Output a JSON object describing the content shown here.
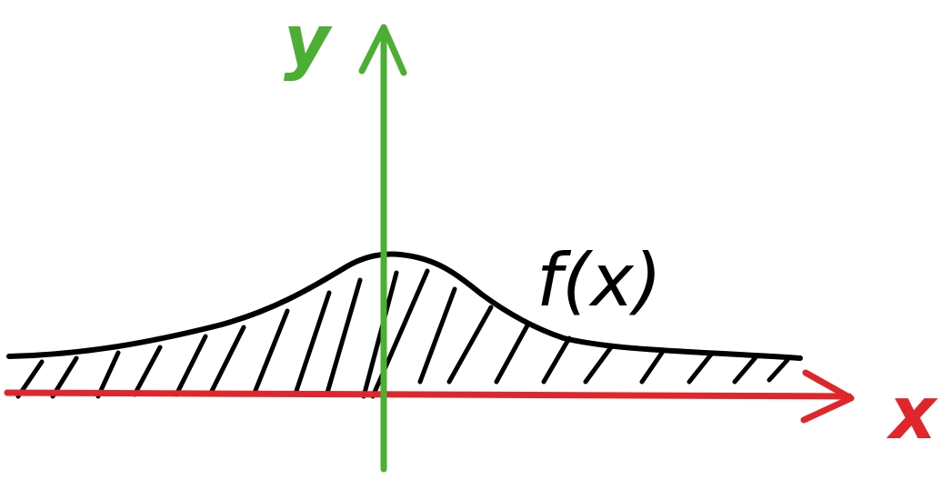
{
  "labels": {
    "y_axis": "y",
    "x_axis": "x",
    "curve": "f(x)"
  },
  "colors": {
    "x_axis": "#e0262a",
    "y_axis": "#4caf33",
    "curve": "#000000",
    "hatch": "#000000",
    "background": "#ffffff"
  }
}
